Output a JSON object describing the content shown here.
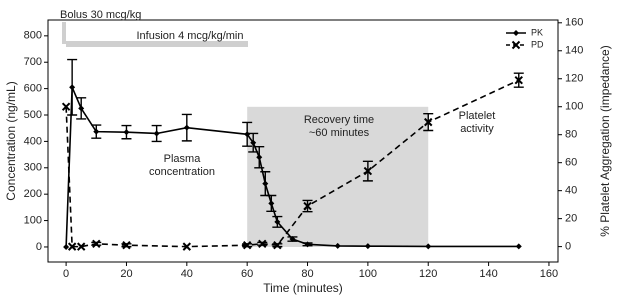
{
  "chart_data": {
    "type": "line",
    "xlabel": "Time (minutes)",
    "ylabel": "Concentration (ng/mL)",
    "y2label": "% Platelet Aggregation (impedance)",
    "xlim": [
      -6,
      163
    ],
    "xticks": [
      0,
      20,
      40,
      60,
      80,
      100,
      120,
      140,
      160
    ],
    "ylim": [
      -57,
      860
    ],
    "yticks": [
      0,
      100,
      200,
      300,
      400,
      500,
      600,
      700,
      800
    ],
    "y2lim": [
      -11,
      162
    ],
    "y2ticks": [
      0,
      20,
      40,
      60,
      80,
      100,
      120,
      140,
      160
    ],
    "legend": "upper right",
    "shaded_region": {
      "x": [
        60,
        120
      ],
      "top": 531,
      "color": "#d9d9d9"
    },
    "series": [
      {
        "name": "PK",
        "color": "#000000",
        "dash": false,
        "marker": "diamond",
        "x": [
          0,
          2,
          5,
          10,
          20,
          30,
          40,
          60,
          62,
          64,
          66,
          68,
          70,
          75,
          80,
          90,
          100,
          120,
          150
        ],
        "values": [
          0,
          605,
          525,
          437,
          435,
          430,
          452,
          427,
          395,
          340,
          240,
          165,
          95,
          30,
          10,
          4,
          3,
          2,
          2
        ],
        "errors": [
          0,
          105,
          40,
          25,
          25,
          30,
          50,
          45,
          35,
          40,
          45,
          30,
          20,
          8,
          5,
          0,
          0,
          0,
          0
        ]
      },
      {
        "name": "PD",
        "color": "#000000",
        "dash": true,
        "marker": "x",
        "axis": "y2",
        "x": [
          0,
          2,
          5,
          10,
          20,
          40,
          60,
          65,
          70,
          80,
          100,
          120,
          150
        ],
        "values": [
          100,
          0,
          0,
          2,
          1,
          0,
          1,
          2,
          1,
          29,
          54,
          89,
          119
        ],
        "errors": [
          0,
          0,
          0,
          1,
          1,
          0,
          1,
          1,
          1,
          4,
          7,
          6,
          5
        ]
      }
    ],
    "annotations": [
      {
        "text": [
          "Bolus 30 mcg/kg"
        ]
      },
      {
        "text": [
          "Infusion 4 mcg/kg/min"
        ]
      },
      {
        "text": [
          "Recovery time",
          "~60 minutes"
        ]
      },
      {
        "text": [
          "Platelet",
          "activity"
        ]
      },
      {
        "text": [
          "Plasma",
          "concentration"
        ]
      }
    ]
  }
}
